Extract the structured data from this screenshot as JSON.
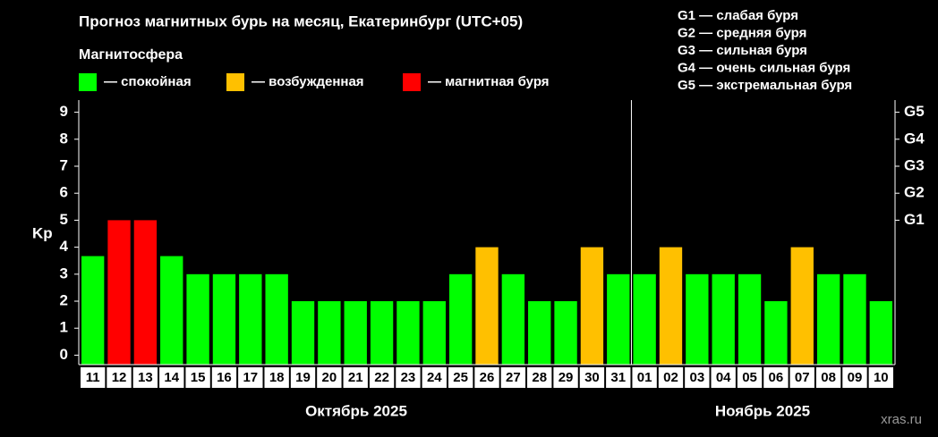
{
  "chart_data": {
    "type": "bar",
    "title": "Прогноз магнитных бурь на месяц, Екатеринбург (UTC+05)",
    "legend_title": "Магнитосфера",
    "legend": [
      {
        "label": "— спокойная",
        "color": "#00ff00"
      },
      {
        "label": "— возбужденная",
        "color": "#ffc000"
      },
      {
        "label": "— магнитная буря",
        "color": "#ff0000"
      }
    ],
    "storm_scale": [
      "G1 — слабая буря",
      "G2 — средняя буря",
      "G3 — сильная буря",
      "G4 — очень сильная буря",
      "G5 — экстремальная буря"
    ],
    "ylabel": "Kp",
    "categories": [
      "11",
      "12",
      "13",
      "14",
      "15",
      "16",
      "17",
      "18",
      "19",
      "20",
      "21",
      "22",
      "23",
      "24",
      "25",
      "26",
      "27",
      "28",
      "29",
      "30",
      "31",
      "01",
      "02",
      "03",
      "04",
      "05",
      "06",
      "07",
      "08",
      "09",
      "10"
    ],
    "values": [
      3.67,
      5,
      5,
      3.67,
      3,
      3,
      3,
      3,
      2,
      2,
      2,
      2,
      2,
      2,
      3,
      4,
      3,
      2,
      2,
      4,
      3,
      3,
      4,
      3,
      3,
      3,
      2,
      4,
      3,
      3,
      2
    ],
    "colors": [
      "#00ff00",
      "#ff0000",
      "#ff0000",
      "#00ff00",
      "#00ff00",
      "#00ff00",
      "#00ff00",
      "#00ff00",
      "#00ff00",
      "#00ff00",
      "#00ff00",
      "#00ff00",
      "#00ff00",
      "#00ff00",
      "#00ff00",
      "#ffc000",
      "#00ff00",
      "#00ff00",
      "#00ff00",
      "#ffc000",
      "#00ff00",
      "#00ff00",
      "#ffc000",
      "#00ff00",
      "#00ff00",
      "#00ff00",
      "#00ff00",
      "#ffc000",
      "#00ff00",
      "#00ff00",
      "#00ff00"
    ],
    "ylim": [
      -0.35,
      9.45
    ],
    "yticks": [
      0,
      1,
      2,
      3,
      4,
      5,
      6,
      7,
      8,
      9
    ],
    "y2lim": [
      -0.35,
      9.45
    ],
    "y2ticks": [
      {
        "value": 5,
        "label": "G1"
      },
      {
        "value": 6,
        "label": "G2"
      },
      {
        "value": 7,
        "label": "G3"
      },
      {
        "value": 8,
        "label": "G4"
      },
      {
        "value": 9,
        "label": "G5"
      }
    ],
    "months": [
      "Октябрь 2025",
      "Ноябрь 2025"
    ],
    "watermark": "xras.ru"
  }
}
